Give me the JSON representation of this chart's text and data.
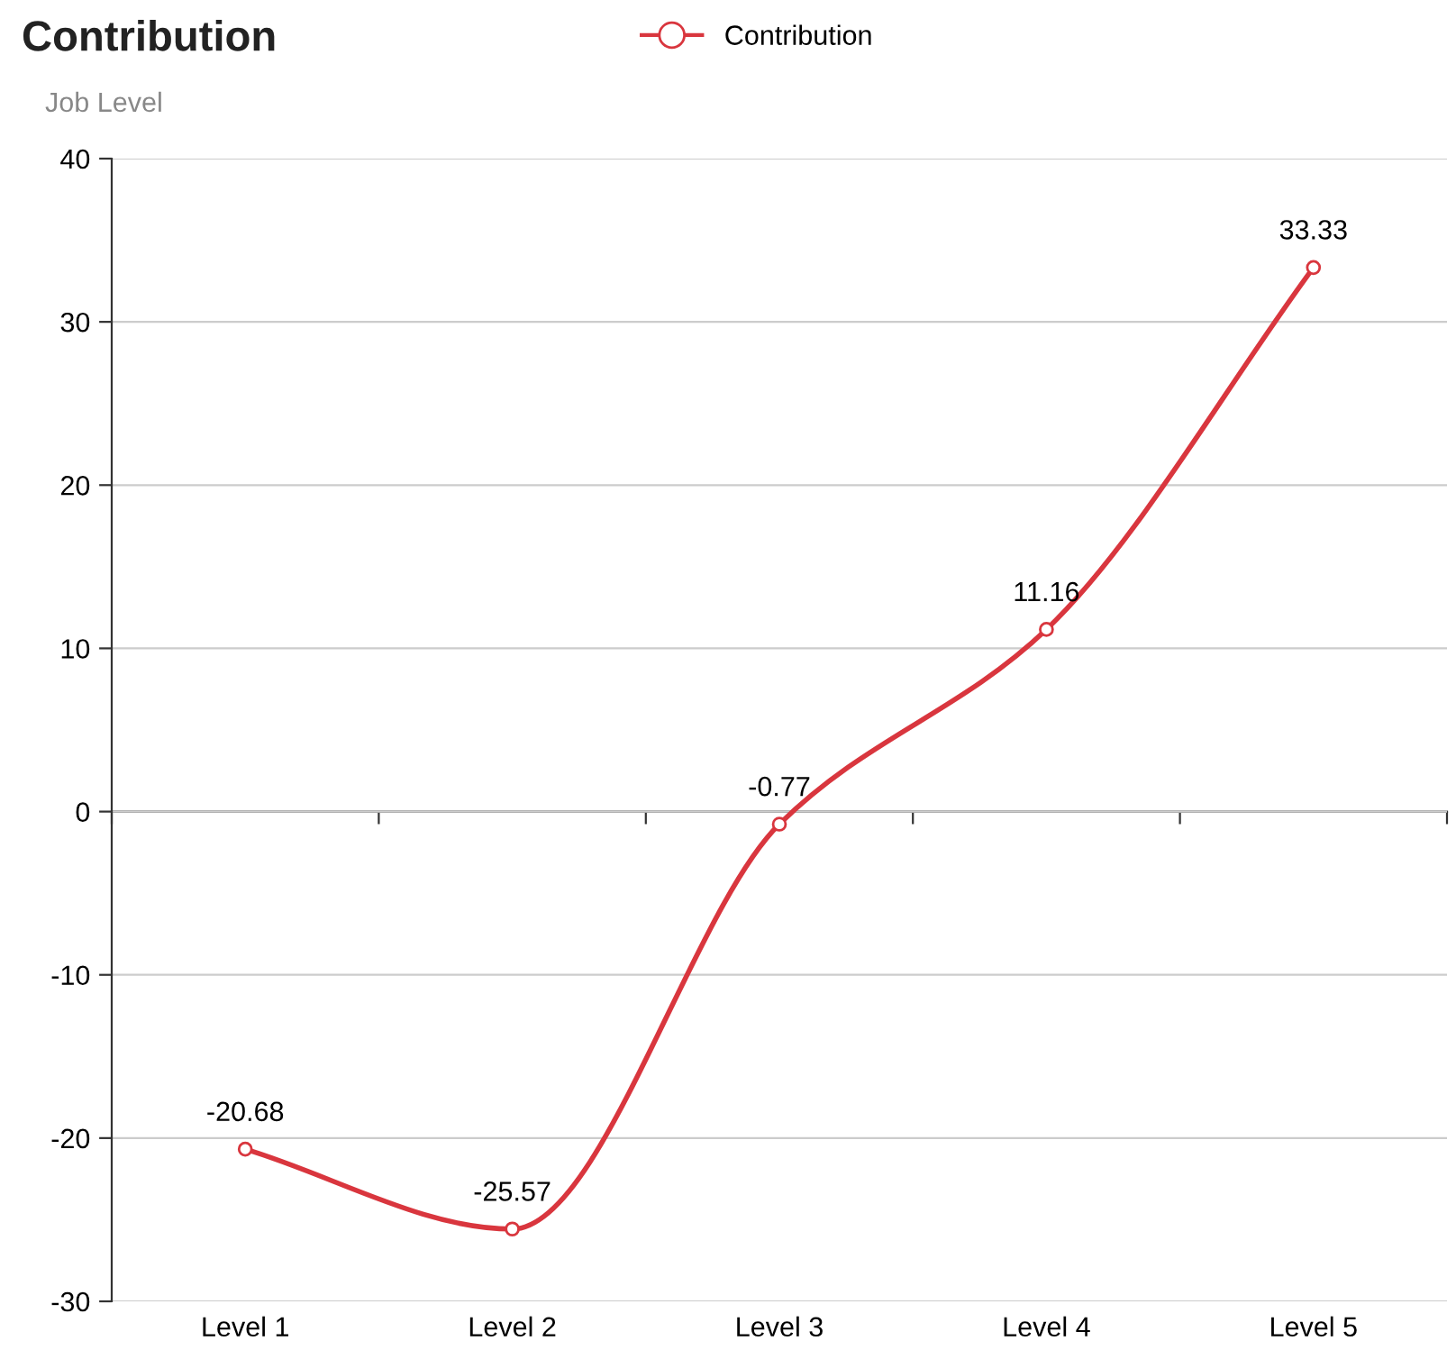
{
  "chart_data": {
    "type": "line",
    "title": "Contribution",
    "ylabel": "Job Level",
    "categories": [
      "Level 1",
      "Level 2",
      "Level 3",
      "Level 4",
      "Level 5"
    ],
    "series": [
      {
        "name": "Contribution",
        "color": "#d9363e",
        "values": [
          -20.68,
          -25.57,
          -0.77,
          11.16,
          33.33
        ]
      }
    ],
    "ylim": [
      -30,
      40
    ],
    "yticks": [
      -30,
      -20,
      -10,
      0,
      10,
      20,
      30,
      40
    ],
    "grid": "y",
    "legend": "top",
    "marker": "circle",
    "line_style": "solid",
    "data_labels": true
  }
}
